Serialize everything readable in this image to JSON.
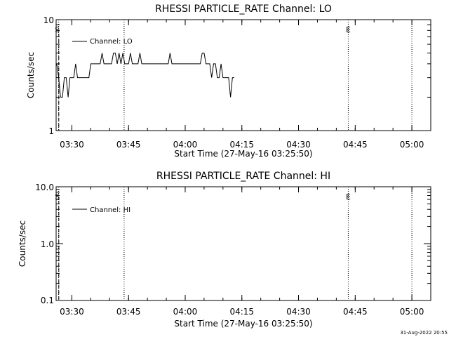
{
  "footer": {
    "stamp": "31-Aug-2022 20:55"
  },
  "chart_data": [
    {
      "type": "line",
      "title": "RHESSI PARTICLE_RATE Channel: LO",
      "xlabel": "Start Time (27-May-16 03:25:50)",
      "ylabel": "Counts/sec",
      "yscale": "log",
      "ylim": [
        1,
        10
      ],
      "xlim": [
        "03:25:50",
        "05:05:00"
      ],
      "y_tick_labels": [
        "1",
        "10"
      ],
      "x_tick_labels": [
        "03:30",
        "03:45",
        "04:00",
        "04:15",
        "04:30",
        "04:45",
        "05:00"
      ],
      "markers": [
        {
          "label": "S",
          "time": "03:26:10"
        },
        {
          "label": "E",
          "time": "04:43:10"
        }
      ],
      "vlines": [
        "03:26:30",
        "03:43:50",
        "04:43:10",
        "05:00:00"
      ],
      "legend": {
        "placement": "top-left",
        "entries": [
          "Channel: LO"
        ]
      },
      "series": [
        {
          "name": "Channel: LO",
          "step_seconds": 30,
          "values": [
            4,
            3,
            2,
            2,
            3,
            3,
            2,
            3,
            3,
            3,
            4,
            3,
            3,
            3,
            3,
            3,
            3,
            3,
            4,
            4,
            4,
            4,
            4,
            4,
            5,
            4,
            4,
            4,
            4,
            4,
            5,
            5,
            4,
            5,
            4,
            5,
            4,
            4,
            4,
            5,
            4,
            4,
            4,
            4,
            5,
            4,
            4,
            4,
            4,
            4,
            4,
            4,
            4,
            4,
            4,
            4,
            4,
            4,
            4,
            4,
            5,
            4,
            4,
            4,
            4,
            4,
            4,
            4,
            4,
            4,
            4,
            4,
            4,
            4,
            4,
            4,
            4,
            5,
            5,
            4,
            4,
            4,
            3,
            4,
            4,
            3,
            3,
            4,
            3,
            3,
            3,
            3,
            2,
            3,
            3
          ]
        }
      ]
    },
    {
      "type": "line",
      "title": "RHESSI PARTICLE_RATE Channel: HI",
      "xlabel": "Start Time (27-May-16 03:25:50)",
      "ylabel": "Counts/sec",
      "yscale": "log",
      "ylim": [
        0.1,
        10
      ],
      "xlim": [
        "03:25:50",
        "05:05:00"
      ],
      "y_tick_labels": [
        "0.1",
        "1.0",
        "10.0"
      ],
      "x_tick_labels": [
        "03:30",
        "03:45",
        "04:00",
        "04:15",
        "04:30",
        "04:45",
        "05:00"
      ],
      "markers": [
        {
          "label": "S",
          "time": "03:26:10"
        },
        {
          "label": "E",
          "time": "04:43:10"
        }
      ],
      "vlines": [
        "03:26:30",
        "03:43:50",
        "04:43:10",
        "05:00:00"
      ],
      "legend": {
        "placement": "top-left",
        "entries": [
          "Channel: HI"
        ]
      },
      "series": [
        {
          "name": "Channel: HI",
          "values": []
        }
      ]
    }
  ]
}
